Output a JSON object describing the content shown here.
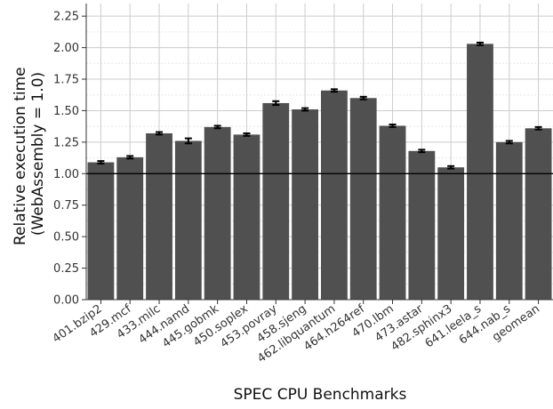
{
  "chart_data": {
    "type": "bar",
    "xlabel": "SPEC CPU Benchmarks",
    "ylabel_lines": [
      "Relative execution time",
      "(WebAssembly = 1.0)"
    ],
    "categories": [
      "401.bzip2",
      "429.mcf",
      "433.milc",
      "444.namd",
      "445.gobmk",
      "450.soplex",
      "453.povray",
      "458.sjeng",
      "462.libquantum",
      "464.h264ref",
      "470.lbm",
      "473.astar",
      "482.sphinx3",
      "641.leela_s",
      "644.nab_s",
      "geomean"
    ],
    "values": [
      1.09,
      1.13,
      1.32,
      1.26,
      1.37,
      1.31,
      1.56,
      1.51,
      1.66,
      1.6,
      1.38,
      1.18,
      1.05,
      2.03,
      1.25,
      1.36
    ],
    "errors": [
      0.01,
      0.01,
      0.01,
      0.02,
      0.01,
      0.01,
      0.015,
      0.01,
      0.01,
      0.01,
      0.01,
      0.01,
      0.01,
      0.01,
      0.01,
      0.01
    ],
    "yticks": [
      "0.00",
      "0.25",
      "0.50",
      "0.75",
      "1.00",
      "1.25",
      "1.50",
      "1.75",
      "2.00",
      "2.25"
    ],
    "ylim": [
      0,
      2.35
    ],
    "reference_line": 1.0,
    "grid": true,
    "colors": {
      "bar": "#505050",
      "reference": "#000000",
      "grid": "#cccccc"
    }
  }
}
